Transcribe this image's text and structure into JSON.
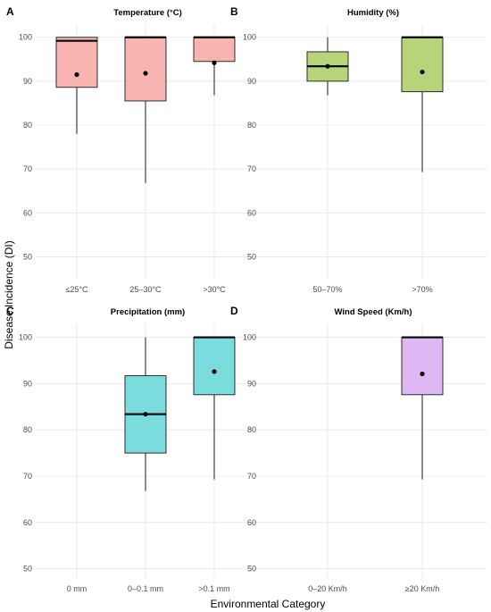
{
  "figure": {
    "ylabel": "Disease Incidence (DI)",
    "xlabel": "Environmental Category"
  },
  "chart_data": [
    {
      "type": "box",
      "panel": "A",
      "title": "Temperature (°C)",
      "ylim": [
        45,
        103
      ],
      "yticks": [
        50,
        60,
        70,
        80,
        90,
        100
      ],
      "grid": true,
      "categories": [
        "≤25°C",
        "25–30°C",
        ">30°C"
      ],
      "boxes": [
        {
          "category": "≤25°C",
          "min": 78,
          "q1": 88.6,
          "median": 99.2,
          "q3": 100,
          "max": 100,
          "mean": 91.5,
          "color": "#f8b4b0"
        },
        {
          "category": "25–30°C",
          "min": 66.8,
          "q1": 85.5,
          "median": 100,
          "q3": 100,
          "max": 100,
          "mean": 91.8,
          "color": "#f8b4b0"
        },
        {
          "category": ">30°C",
          "min": 86.8,
          "q1": 94.5,
          "median": 100,
          "q3": 100,
          "max": 100,
          "mean": 94.2,
          "color": "#f8b4b0"
        }
      ]
    },
    {
      "type": "box",
      "panel": "B",
      "title": "Humidity (%)",
      "ylim": [
        45,
        103
      ],
      "yticks": [
        50,
        60,
        70,
        80,
        90,
        100
      ],
      "grid": true,
      "categories": [
        "50–70%",
        ">70%"
      ],
      "boxes": [
        {
          "category": "50–70%",
          "min": 86.8,
          "q1": 90,
          "median": 93.4,
          "q3": 96.7,
          "max": 100,
          "mean": 93.4,
          "color": "#b8d47a"
        },
        {
          "category": ">70%",
          "min": 69.3,
          "q1": 87.6,
          "median": 100,
          "q3": 100,
          "max": 100,
          "mean": 92.1,
          "color": "#b8d47a"
        }
      ]
    },
    {
      "type": "box",
      "panel": "C",
      "title": "Precipitation (mm)",
      "ylim": [
        48,
        103
      ],
      "yticks": [
        50,
        60,
        70,
        80,
        90,
        100
      ],
      "grid": true,
      "categories": [
        "0 mm",
        "0–0.1 mm",
        ">0.1 mm"
      ],
      "boxes": [
        {
          "category": "0–0.1 mm",
          "min": 66.8,
          "q1": 75,
          "median": 83.4,
          "q3": 91.7,
          "max": 100,
          "mean": 83.4,
          "color": "#7adcdc"
        },
        {
          "category": ">0.1 mm",
          "min": 69.3,
          "q1": 87.6,
          "median": 100,
          "q3": 100,
          "max": 100,
          "mean": 92.6,
          "color": "#7adcdc"
        }
      ]
    },
    {
      "type": "box",
      "panel": "D",
      "title": "Wind Speed (Km/h)",
      "ylim": [
        48,
        103
      ],
      "yticks": [
        50,
        60,
        70,
        80,
        90,
        100
      ],
      "grid": true,
      "categories": [
        "0–20 Km/h",
        "≥20 Km/h"
      ],
      "boxes": [
        {
          "category": "≥20 Km/h",
          "min": 69.3,
          "q1": 87.6,
          "median": 100,
          "q3": 100,
          "max": 100,
          "mean": 92.1,
          "color": "#deb8f5"
        }
      ]
    }
  ]
}
